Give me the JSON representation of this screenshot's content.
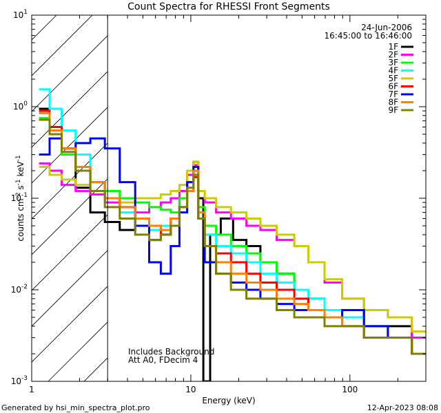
{
  "chart_data": {
    "type": "line",
    "title": "Count Spectra for RHESSI Front Segments",
    "xlabel": "Energy (keV)",
    "ylabel_parts": [
      "counts cm",
      "-2",
      " s",
      "-1",
      " keV",
      "-1"
    ],
    "xscale": "log",
    "yscale": "log",
    "xlim": [
      1,
      300
    ],
    "ylim": [
      0.001,
      10
    ],
    "x_ticks": [
      {
        "v": 1,
        "label": "1"
      },
      {
        "v": 10,
        "label": "10"
      },
      {
        "v": 100,
        "label": "100"
      }
    ],
    "y_ticks": [
      {
        "v": 0.001,
        "base": "10",
        "exp": "-3"
      },
      {
        "v": 0.01,
        "base": "10",
        "exp": "-2"
      },
      {
        "v": 0.1,
        "base": "10",
        "exp": "-1"
      },
      {
        "v": 1,
        "base": "10",
        "exp": "0"
      },
      {
        "v": 10,
        "base": "10",
        "exp": "1"
      }
    ],
    "hatched_below_keV": 3,
    "date": "24-Jun-2006",
    "time_range": "16:45:00 to 16:46:00",
    "annotations": [
      "Includes Background",
      "Att A0, FDecim 4"
    ],
    "series": [
      {
        "name": "1F",
        "color": "#000000",
        "points": [
          [
            1.2,
            0.95
          ],
          [
            1.4,
            0.55
          ],
          [
            1.7,
            0.3
          ],
          [
            2.1,
            0.13
          ],
          [
            2.6,
            0.07
          ],
          [
            3.2,
            0.055
          ],
          [
            4,
            0.045
          ],
          [
            5,
            0.05
          ],
          [
            6,
            0.035
          ],
          [
            7,
            0.04
          ],
          [
            8,
            0.06
          ],
          [
            9,
            0.1
          ],
          [
            10,
            0.18
          ],
          [
            10.8,
            0.25
          ],
          [
            11.5,
            0.1
          ],
          [
            12.5,
            0.001
          ],
          [
            14,
            0.04
          ],
          [
            17,
            0.06
          ],
          [
            20,
            0.035
          ],
          [
            25,
            0.03
          ],
          [
            30,
            0.02
          ],
          [
            40,
            0.015
          ],
          [
            50,
            0.01
          ],
          [
            60,
            0.008
          ],
          [
            80,
            0.006
          ],
          [
            100,
            0.006
          ],
          [
            150,
            0.004
          ],
          [
            200,
            0.004
          ],
          [
            300,
            0.002
          ]
        ]
      },
      {
        "name": "2F",
        "color": "#ff00ff",
        "points": [
          [
            1.2,
            0.24
          ],
          [
            1.4,
            0.2
          ],
          [
            1.7,
            0.14
          ],
          [
            2.1,
            0.12
          ],
          [
            2.6,
            0.11
          ],
          [
            3.2,
            0.09
          ],
          [
            4,
            0.08
          ],
          [
            5,
            0.07
          ],
          [
            6,
            0.08
          ],
          [
            7,
            0.09
          ],
          [
            8,
            0.1
          ],
          [
            9,
            0.12
          ],
          [
            10,
            0.18
          ],
          [
            10.8,
            0.23
          ],
          [
            11.5,
            0.12
          ],
          [
            13,
            0.09
          ],
          [
            16,
            0.07
          ],
          [
            20,
            0.06
          ],
          [
            25,
            0.05
          ],
          [
            30,
            0.045
          ],
          [
            40,
            0.035
          ],
          [
            50,
            0.03
          ],
          [
            60,
            0.02
          ],
          [
            80,
            0.012
          ],
          [
            100,
            0.008
          ],
          [
            150,
            0.006
          ],
          [
            200,
            0.005
          ],
          [
            300,
            0.003
          ]
        ]
      },
      {
        "name": "3F",
        "color": "#00ff00",
        "points": [
          [
            1.2,
            0.75
          ],
          [
            1.4,
            0.5
          ],
          [
            1.7,
            0.3
          ],
          [
            2.1,
            0.2
          ],
          [
            2.6,
            0.15
          ],
          [
            3.2,
            0.12
          ],
          [
            4,
            0.1
          ],
          [
            5,
            0.09
          ],
          [
            6,
            0.08
          ],
          [
            7,
            0.075
          ],
          [
            8,
            0.07
          ],
          [
            9,
            0.1
          ],
          [
            10,
            0.15
          ],
          [
            10.8,
            0.2
          ],
          [
            11.5,
            0.08
          ],
          [
            13,
            0.05
          ],
          [
            16,
            0.04
          ],
          [
            20,
            0.03
          ],
          [
            25,
            0.025
          ],
          [
            30,
            0.02
          ],
          [
            40,
            0.015
          ],
          [
            50,
            0.01
          ],
          [
            60,
            0.008
          ],
          [
            80,
            0.006
          ],
          [
            100,
            0.005
          ],
          [
            150,
            0.004
          ],
          [
            200,
            0.003
          ],
          [
            300,
            0.002
          ]
        ]
      },
      {
        "name": "4F",
        "color": "#00ffff",
        "points": [
          [
            1.2,
            1.55
          ],
          [
            1.4,
            0.95
          ],
          [
            1.7,
            0.55
          ],
          [
            2.1,
            0.3
          ],
          [
            2.6,
            0.15
          ],
          [
            3.2,
            0.1
          ],
          [
            4,
            0.07
          ],
          [
            5,
            0.05
          ],
          [
            6,
            0.045
          ],
          [
            7,
            0.05
          ],
          [
            8,
            0.06
          ],
          [
            9,
            0.08
          ],
          [
            10,
            0.12
          ],
          [
            10.8,
            0.18
          ],
          [
            11.5,
            0.07
          ],
          [
            13,
            0.04
          ],
          [
            16,
            0.03
          ],
          [
            20,
            0.025
          ],
          [
            25,
            0.02
          ],
          [
            30,
            0.015
          ],
          [
            40,
            0.012
          ],
          [
            50,
            0.01
          ],
          [
            60,
            0.008
          ],
          [
            80,
            0.006
          ],
          [
            100,
            0.005
          ],
          [
            150,
            0.004
          ],
          [
            200,
            0.003
          ],
          [
            300,
            0.002
          ]
        ]
      },
      {
        "name": "5F",
        "color": "#cccc00",
        "points": [
          [
            1.2,
            0.22
          ],
          [
            1.4,
            0.18
          ],
          [
            1.7,
            0.16
          ],
          [
            2.1,
            0.14
          ],
          [
            2.6,
            0.12
          ],
          [
            3.2,
            0.1
          ],
          [
            4,
            0.09
          ],
          [
            5,
            0.1
          ],
          [
            6,
            0.1
          ],
          [
            7,
            0.11
          ],
          [
            8,
            0.12
          ],
          [
            9,
            0.14
          ],
          [
            10,
            0.2
          ],
          [
            10.8,
            0.25
          ],
          [
            11.5,
            0.12
          ],
          [
            13,
            0.1
          ],
          [
            16,
            0.08
          ],
          [
            20,
            0.07
          ],
          [
            25,
            0.06
          ],
          [
            30,
            0.05
          ],
          [
            40,
            0.04
          ],
          [
            50,
            0.03
          ],
          [
            60,
            0.02
          ],
          [
            80,
            0.013
          ],
          [
            100,
            0.008
          ],
          [
            150,
            0.006
          ],
          [
            200,
            0.005
          ],
          [
            300,
            0.0035
          ]
        ]
      },
      {
        "name": "6F",
        "color": "#ff0000",
        "points": [
          [
            1.2,
            0.9
          ],
          [
            1.4,
            0.6
          ],
          [
            1.7,
            0.35
          ],
          [
            2.1,
            0.22
          ],
          [
            2.6,
            0.15
          ],
          [
            3.2,
            0.1
          ],
          [
            4,
            0.08
          ],
          [
            5,
            0.06
          ],
          [
            6,
            0.05
          ],
          [
            7,
            0.04
          ],
          [
            8,
            0.06
          ],
          [
            9,
            0.08
          ],
          [
            10,
            0.12
          ],
          [
            10.8,
            0.17
          ],
          [
            11.5,
            0.06
          ],
          [
            13,
            0.03
          ],
          [
            16,
            0.025
          ],
          [
            20,
            0.02
          ],
          [
            25,
            0.015
          ],
          [
            30,
            0.012
          ],
          [
            40,
            0.01
          ],
          [
            50,
            0.008
          ],
          [
            60,
            0.006
          ],
          [
            80,
            0.005
          ],
          [
            100,
            0.004
          ],
          [
            150,
            0.003
          ],
          [
            200,
            0.003
          ],
          [
            300,
            0.002
          ]
        ]
      },
      {
        "name": "7F",
        "color": "#0000ff",
        "points": [
          [
            1.2,
            0.3
          ],
          [
            1.4,
            0.45
          ],
          [
            1.7,
            0.35
          ],
          [
            2.1,
            0.4
          ],
          [
            2.6,
            0.45
          ],
          [
            3.2,
            0.35
          ],
          [
            4,
            0.15
          ],
          [
            5,
            0.05
          ],
          [
            6,
            0.02
          ],
          [
            7,
            0.015
          ],
          [
            8,
            0.03
          ],
          [
            9,
            0.07
          ],
          [
            10,
            0.15
          ],
          [
            10.8,
            0.22
          ],
          [
            11.5,
            0.06
          ],
          [
            13,
            0.02
          ],
          [
            16,
            0.015
          ],
          [
            20,
            0.012
          ],
          [
            25,
            0.01
          ],
          [
            30,
            0.008
          ],
          [
            40,
            0.007
          ],
          [
            50,
            0.006
          ],
          [
            60,
            0.006
          ],
          [
            80,
            0.005
          ],
          [
            100,
            0.006
          ],
          [
            150,
            0.004
          ],
          [
            200,
            0.003
          ],
          [
            300,
            0.002
          ]
        ]
      },
      {
        "name": "8F",
        "color": "#ff8000",
        "points": [
          [
            1.2,
            0.85
          ],
          [
            1.4,
            0.55
          ],
          [
            1.7,
            0.35
          ],
          [
            2.1,
            0.22
          ],
          [
            2.6,
            0.15
          ],
          [
            3.2,
            0.1
          ],
          [
            4,
            0.08
          ],
          [
            5,
            0.06
          ],
          [
            6,
            0.05
          ],
          [
            7,
            0.045
          ],
          [
            8,
            0.06
          ],
          [
            9,
            0.08
          ],
          [
            10,
            0.12
          ],
          [
            10.8,
            0.2
          ],
          [
            11.5,
            0.07
          ],
          [
            13,
            0.03
          ],
          [
            16,
            0.02
          ],
          [
            20,
            0.015
          ],
          [
            25,
            0.012
          ],
          [
            30,
            0.01
          ],
          [
            40,
            0.008
          ],
          [
            50,
            0.007
          ],
          [
            60,
            0.006
          ],
          [
            80,
            0.005
          ],
          [
            100,
            0.004
          ],
          [
            150,
            0.003
          ],
          [
            200,
            0.003
          ],
          [
            300,
            0.002
          ]
        ]
      },
      {
        "name": "9F",
        "color": "#808000",
        "points": [
          [
            1.2,
            0.72
          ],
          [
            1.4,
            0.5
          ],
          [
            1.7,
            0.32
          ],
          [
            2.1,
            0.2
          ],
          [
            2.6,
            0.12
          ],
          [
            3.2,
            0.08
          ],
          [
            4,
            0.06
          ],
          [
            5,
            0.04
          ],
          [
            6,
            0.035
          ],
          [
            7,
            0.04
          ],
          [
            8,
            0.05
          ],
          [
            9,
            0.08
          ],
          [
            10,
            0.13
          ],
          [
            10.8,
            0.18
          ],
          [
            11.5,
            0.06
          ],
          [
            13,
            0.03
          ],
          [
            16,
            0.015
          ],
          [
            20,
            0.01
          ],
          [
            25,
            0.008
          ],
          [
            30,
            0.008
          ],
          [
            40,
            0.006
          ],
          [
            50,
            0.005
          ],
          [
            60,
            0.005
          ],
          [
            80,
            0.004
          ],
          [
            100,
            0.004
          ],
          [
            150,
            0.003
          ],
          [
            200,
            0.003
          ],
          [
            300,
            0.002
          ]
        ]
      }
    ]
  },
  "footer": {
    "generator": "Generated by hsi_min_spectra_plot.pro",
    "timestamp": "12-Apr-2023 08:08"
  }
}
